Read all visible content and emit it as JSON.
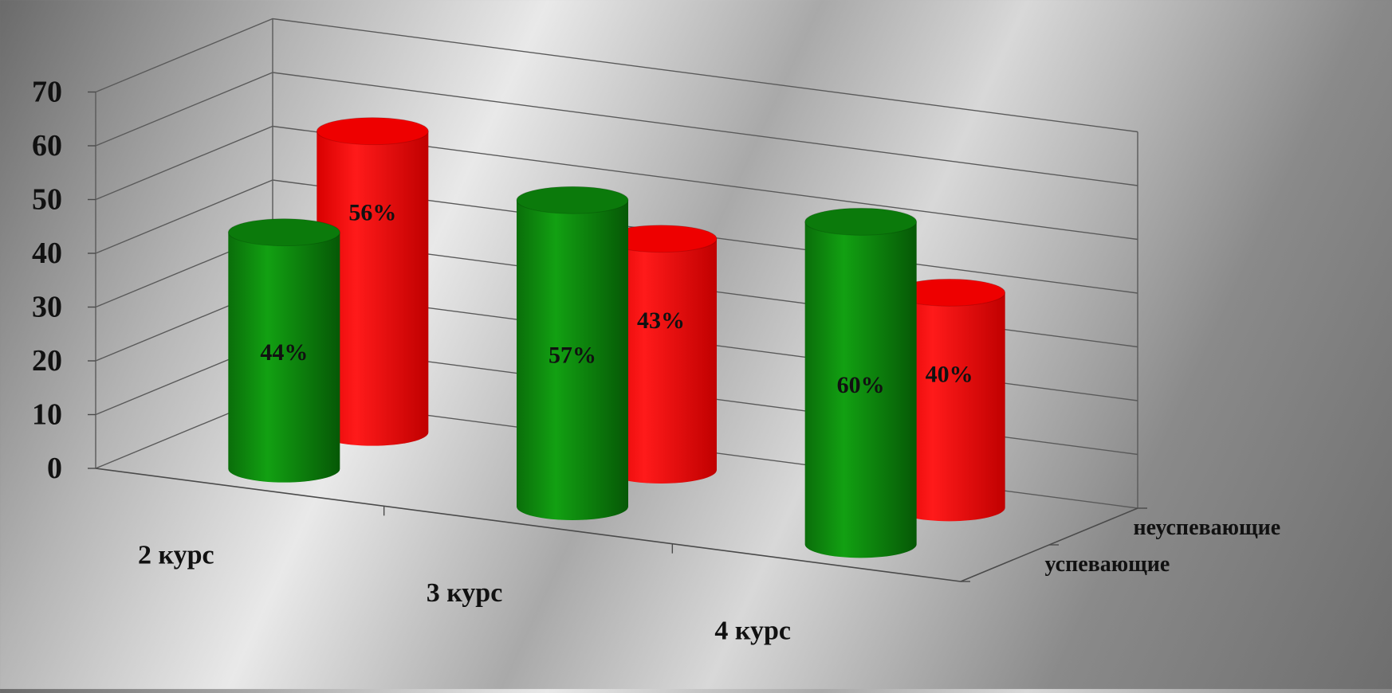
{
  "chart_data": {
    "type": "bar",
    "subtype": "3d-cylinder",
    "categories": [
      "2 курс",
      "3 курс",
      "4 курс"
    ],
    "series": [
      {
        "name": "успевающие",
        "values": [
          44,
          57,
          60
        ],
        "labels": [
          "44%",
          "57%",
          "60%"
        ],
        "color": "#0a8a0a"
      },
      {
        "name": "неуспевающие",
        "values": [
          56,
          43,
          40
        ],
        "labels": [
          "56%",
          "43%",
          "40%"
        ],
        "color": "#ff0000"
      }
    ],
    "y_ticks": [
      "0",
      "10",
      "20",
      "30",
      "40",
      "50",
      "60",
      "70"
    ],
    "ylim": [
      0,
      70
    ],
    "grid": true
  }
}
